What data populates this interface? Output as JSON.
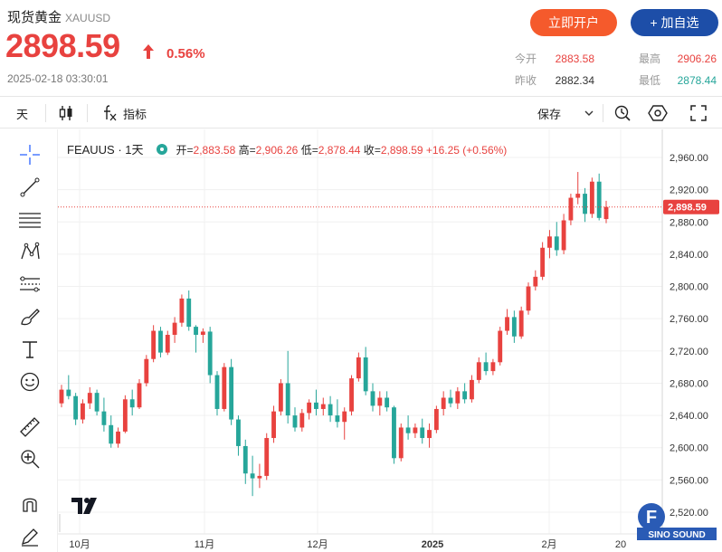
{
  "header": {
    "name": "现货黄金",
    "symbol": "XAUUSD",
    "price": "2898.59",
    "change_pct": "0.56%",
    "timestamp": "2025-02-18 03:30:01",
    "btn_open": "立即开户",
    "btn_fav": "+ 加自选",
    "stats": {
      "open_label": "今开",
      "open_value": "2883.58",
      "high_label": "最高",
      "high_value": "2906.26",
      "prev_label": "昨收",
      "prev_value": "2882.34",
      "low_label": "最低",
      "low_value": "2878.44"
    },
    "colors": {
      "up": "#e8423f",
      "down": "#26a69a",
      "open_btn": "#f55a2c",
      "fav_btn": "#1d4ea8"
    }
  },
  "toolbar": {
    "interval": "天",
    "candle_icon": "candlestick-icon",
    "indicator_label": "指标",
    "save_label": "保存",
    "icons": [
      "fx-icon",
      "chevron-down-icon",
      "alert-icon",
      "settings-hexagon-icon",
      "fullscreen-icon"
    ]
  },
  "left_tools": [
    "crosshair-icon",
    "trend-line-icon",
    "fib-lines-icon",
    "pattern-icon",
    "forecast-icon",
    "brush-icon",
    "text-icon",
    "emoji-icon",
    "ruler-icon",
    "zoom-in-icon",
    "magnet-icon",
    "lock-pencil-icon"
  ],
  "legend": {
    "symbol": "FEAUUS · 1天",
    "open_label": "开",
    "open": "2,883.58",
    "high_label": "高",
    "high": "2,906.26",
    "low_label": "低",
    "low": "2,878.44",
    "close_label": "收",
    "close": "2,898.59",
    "change": "+16.25 (+0.56%)"
  },
  "brand_text": "SINO SOUND",
  "chart_data": {
    "type": "candlestick",
    "y_ticks": [
      "2,960.00",
      "2,920.00",
      "2,880.00",
      "2,840.00",
      "2,800.00",
      "2,760.00",
      "2,720.00",
      "2,680.00",
      "2,640.00",
      "2,600.00",
      "2,560.00",
      "2,520.00"
    ],
    "y_tick_values": [
      2960,
      2920,
      2880,
      2840,
      2800,
      2760,
      2720,
      2680,
      2640,
      2600,
      2560,
      2520
    ],
    "ylim": [
      2505,
      2990
    ],
    "x_ticks": [
      "10月",
      "11月",
      "12月",
      "2025",
      "2月",
      "20"
    ],
    "last_price_label": "2,898.59",
    "last_price": 2898.59,
    "grid": true,
    "candles": [
      [
        2655,
        2678,
        2650,
        2672
      ],
      [
        2672,
        2690,
        2660,
        2664
      ],
      [
        2664,
        2668,
        2628,
        2635
      ],
      [
        2635,
        2660,
        2630,
        2655
      ],
      [
        2655,
        2675,
        2648,
        2668
      ],
      [
        2668,
        2672,
        2640,
        2645
      ],
      [
        2645,
        2662,
        2620,
        2628
      ],
      [
        2628,
        2640,
        2600,
        2605
      ],
      [
        2605,
        2625,
        2600,
        2620
      ],
      [
        2620,
        2665,
        2618,
        2660
      ],
      [
        2660,
        2672,
        2640,
        2650
      ],
      [
        2650,
        2685,
        2648,
        2680
      ],
      [
        2680,
        2715,
        2676,
        2710
      ],
      [
        2710,
        2752,
        2706,
        2745
      ],
      [
        2745,
        2750,
        2712,
        2718
      ],
      [
        2718,
        2745,
        2715,
        2740
      ],
      [
        2740,
        2762,
        2730,
        2755
      ],
      [
        2755,
        2790,
        2750,
        2785
      ],
      [
        2785,
        2795,
        2745,
        2750
      ],
      [
        2750,
        2752,
        2718,
        2740
      ],
      [
        2740,
        2748,
        2730,
        2744
      ],
      [
        2744,
        2750,
        2680,
        2690
      ],
      [
        2690,
        2695,
        2640,
        2648
      ],
      [
        2648,
        2705,
        2645,
        2700
      ],
      [
        2700,
        2710,
        2628,
        2635
      ],
      [
        2635,
        2640,
        2590,
        2602
      ],
      [
        2602,
        2610,
        2555,
        2568
      ],
      [
        2568,
        2590,
        2540,
        2562
      ],
      [
        2562,
        2580,
        2550,
        2565
      ],
      [
        2565,
        2618,
        2560,
        2612
      ],
      [
        2612,
        2652,
        2606,
        2645
      ],
      [
        2645,
        2685,
        2640,
        2680
      ],
      [
        2680,
        2720,
        2630,
        2640
      ],
      [
        2640,
        2650,
        2620,
        2625
      ],
      [
        2625,
        2648,
        2620,
        2643
      ],
      [
        2643,
        2660,
        2635,
        2656
      ],
      [
        2656,
        2672,
        2640,
        2648
      ],
      [
        2648,
        2662,
        2640,
        2654
      ],
      [
        2654,
        2664,
        2632,
        2640
      ],
      [
        2640,
        2660,
        2625,
        2632
      ],
      [
        2632,
        2650,
        2610,
        2645
      ],
      [
        2645,
        2690,
        2640,
        2686
      ],
      [
        2686,
        2718,
        2682,
        2712
      ],
      [
        2712,
        2725,
        2665,
        2670
      ],
      [
        2670,
        2680,
        2645,
        2652
      ],
      [
        2652,
        2670,
        2640,
        2662
      ],
      [
        2662,
        2670,
        2645,
        2650
      ],
      [
        2650,
        2652,
        2580,
        2587
      ],
      [
        2587,
        2630,
        2583,
        2625
      ],
      [
        2625,
        2640,
        2610,
        2618
      ],
      [
        2618,
        2630,
        2612,
        2625
      ],
      [
        2625,
        2636,
        2605,
        2612
      ],
      [
        2612,
        2630,
        2600,
        2622
      ],
      [
        2622,
        2652,
        2618,
        2648
      ],
      [
        2648,
        2670,
        2640,
        2662
      ],
      [
        2662,
        2672,
        2650,
        2655
      ],
      [
        2655,
        2675,
        2648,
        2670
      ],
      [
        2670,
        2680,
        2655,
        2660
      ],
      [
        2660,
        2690,
        2656,
        2684
      ],
      [
        2684,
        2712,
        2680,
        2706
      ],
      [
        2706,
        2718,
        2690,
        2695
      ],
      [
        2695,
        2710,
        2690,
        2706
      ],
      [
        2706,
        2750,
        2702,
        2745
      ],
      [
        2745,
        2772,
        2740,
        2762
      ],
      [
        2762,
        2770,
        2730,
        2738
      ],
      [
        2738,
        2775,
        2735,
        2770
      ],
      [
        2770,
        2805,
        2765,
        2800
      ],
      [
        2800,
        2820,
        2795,
        2812
      ],
      [
        2812,
        2855,
        2808,
        2848
      ],
      [
        2848,
        2870,
        2835,
        2862
      ],
      [
        2862,
        2880,
        2838,
        2845
      ],
      [
        2845,
        2890,
        2840,
        2882
      ],
      [
        2882,
        2915,
        2876,
        2910
      ],
      [
        2910,
        2942,
        2902,
        2915
      ],
      [
        2915,
        2922,
        2880,
        2890
      ],
      [
        2890,
        2935,
        2885,
        2930
      ],
      [
        2930,
        2940,
        2882,
        2885
      ],
      [
        2883.58,
        2906.26,
        2878.44,
        2898.59
      ]
    ]
  }
}
